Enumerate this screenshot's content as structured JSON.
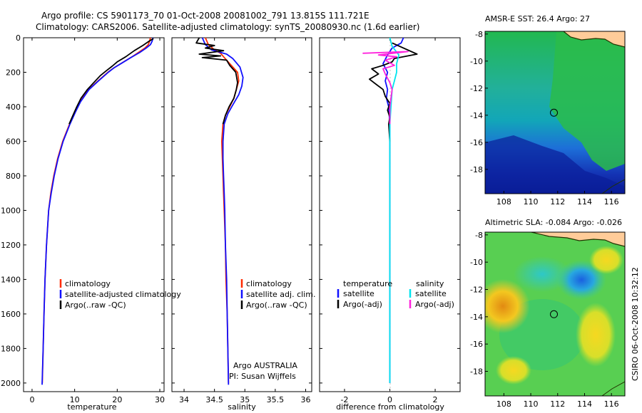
{
  "title": {
    "line1": "Argo profile: CS 5901173_70 01-Oct-2008 20081002_791 13.815S 111.721E",
    "line2": "Climatology: CARS2006. Satellite-adjusted climatology: synTS_20080930.nc (1.6d earlier)"
  },
  "side_label": "CSIRO 06-Oct-2008 10:32:12",
  "colors": {
    "climatology": "#ff2a00",
    "satellite": "#1010ff",
    "argo": "#000000",
    "sat_salinity": "#00e5ee",
    "argo_salinity": "#ff22dd",
    "coast": "#223300",
    "land": "#ffcc99"
  },
  "legend_temp": {
    "items": [
      "climatology",
      "satellite-adjusted climatology",
      "Argo(..raw -QC)"
    ]
  },
  "legend_sal": {
    "items": [
      "climatology",
      "satellite adj. clim.",
      "Argo(..raw -QC)"
    ],
    "note1": "Argo AUSTRALIA",
    "note2": "PI: Susan Wijffels"
  },
  "legend_diff": {
    "temp_header": "temperature",
    "sal_header": "salinity",
    "items_temp": [
      "satellite",
      "Argo(-adj)"
    ],
    "items_sal": [
      "satellite",
      "Argo(-adj)"
    ]
  },
  "map_sst": {
    "title": "AMSR-E SST: 26.4 Argo: 27",
    "float_lon": 111.721,
    "float_lat": -13.815
  },
  "map_sla": {
    "title": "Altimetric SLA: -0.084  Argo: -0.026",
    "float_lon": 111.721,
    "float_lat": -13.815
  },
  "chart_data": [
    {
      "type": "line",
      "xlabel": "temperature",
      "ylabel": "",
      "xlim": [
        -2,
        31
      ],
      "ylim": [
        2050,
        0
      ],
      "xticks": [
        0,
        10,
        20,
        30
      ],
      "yticks": [
        0,
        200,
        400,
        600,
        800,
        1000,
        1200,
        1400,
        1600,
        1800,
        2000
      ],
      "series": [
        {
          "name": "climatology",
          "color": "#ff2a00",
          "points": [
            [
              27.8,
              0
            ],
            [
              27.6,
              20
            ],
            [
              27.3,
              40
            ],
            [
              26.5,
              60
            ],
            [
              25.3,
              80
            ],
            [
              23.5,
              110
            ],
            [
              21.5,
              140
            ],
            [
              19.2,
              175
            ],
            [
              17.8,
              200
            ],
            [
              15.5,
              250
            ],
            [
              13.3,
              300
            ],
            [
              11.3,
              370
            ],
            [
              10.1,
              430
            ],
            [
              8.8,
              500
            ],
            [
              7.2,
              600
            ],
            [
              6.0,
              700
            ],
            [
              5.1,
              800
            ],
            [
              4.4,
              900
            ],
            [
              3.9,
              1000
            ],
            [
              3.4,
              1200
            ],
            [
              3.05,
              1400
            ],
            [
              2.8,
              1600
            ],
            [
              2.6,
              1800
            ],
            [
              2.4,
              2000
            ]
          ]
        },
        {
          "name": "satellite-adjusted climatology",
          "color": "#1010ff",
          "points": [
            [
              28.4,
              0
            ],
            [
              28.2,
              20
            ],
            [
              27.8,
              40
            ],
            [
              26.8,
              60
            ],
            [
              25.3,
              85
            ],
            [
              23.2,
              115
            ],
            [
              21.2,
              145
            ],
            [
              19.2,
              175
            ],
            [
              17.9,
              200
            ],
            [
              15.6,
              250
            ],
            [
              13.4,
              300
            ],
            [
              11.4,
              370
            ],
            [
              10.2,
              430
            ],
            [
              8.9,
              500
            ],
            [
              7.3,
              600
            ],
            [
              6.1,
              700
            ],
            [
              5.2,
              800
            ],
            [
              4.5,
              900
            ],
            [
              3.9,
              1000
            ],
            [
              3.4,
              1200
            ],
            [
              3.05,
              1400
            ],
            [
              2.8,
              1600
            ],
            [
              2.6,
              1800
            ],
            [
              2.35,
              2010
            ]
          ]
        },
        {
          "name": "Argo(..raw -QC)",
          "color": "#000000",
          "points": [
            [
              28.5,
              5
            ],
            [
              27.5,
              20
            ],
            [
              26.0,
              45
            ],
            [
              24.0,
              75
            ],
            [
              22.0,
              110
            ],
            [
              20.0,
              140
            ],
            [
              18.8,
              165
            ],
            [
              17.5,
              190
            ],
            [
              16.0,
              220
            ],
            [
              14.5,
              260
            ],
            [
              13.0,
              300
            ],
            [
              11.5,
              350
            ],
            [
              10.5,
              400
            ],
            [
              9.6,
              450
            ],
            [
              8.7,
              500
            ]
          ]
        }
      ]
    },
    {
      "type": "line",
      "xlabel": "salinity",
      "ylabel": "",
      "xlim": [
        33.8,
        36.1
      ],
      "ylim": [
        2050,
        0
      ],
      "xticks": [
        34,
        34.5,
        35,
        35.5,
        36
      ],
      "series": [
        {
          "name": "climatology",
          "color": "#ff2a00",
          "points": [
            [
              34.35,
              0
            ],
            [
              34.4,
              40
            ],
            [
              34.5,
              70
            ],
            [
              34.6,
              90
            ],
            [
              34.65,
              110
            ],
            [
              34.75,
              150
            ],
            [
              34.88,
              200
            ],
            [
              34.9,
              250
            ],
            [
              34.86,
              300
            ],
            [
              34.82,
              350
            ],
            [
              34.75,
              400
            ],
            [
              34.68,
              450
            ],
            [
              34.64,
              500
            ],
            [
              34.62,
              600
            ],
            [
              34.63,
              700
            ],
            [
              34.64,
              800
            ],
            [
              34.65,
              900
            ],
            [
              34.66,
              1000
            ],
            [
              34.68,
              1200
            ],
            [
              34.69,
              1400
            ],
            [
              34.71,
              1600
            ],
            [
              34.72,
              1800
            ],
            [
              34.73,
              2000
            ]
          ]
        },
        {
          "name": "satellite adj. clim.",
          "color": "#1010ff",
          "points": [
            [
              34.3,
              0
            ],
            [
              34.35,
              40
            ],
            [
              34.45,
              70
            ],
            [
              34.7,
              95
            ],
            [
              34.8,
              120
            ],
            [
              34.92,
              170
            ],
            [
              34.97,
              230
            ],
            [
              34.95,
              280
            ],
            [
              34.9,
              330
            ],
            [
              34.8,
              390
            ],
            [
              34.72,
              440
            ],
            [
              34.66,
              500
            ],
            [
              34.64,
              600
            ],
            [
              34.64,
              700
            ],
            [
              34.65,
              800
            ],
            [
              34.66,
              900
            ],
            [
              34.67,
              1000
            ],
            [
              34.68,
              1200
            ],
            [
              34.7,
              1400
            ],
            [
              34.71,
              1600
            ],
            [
              34.72,
              1800
            ],
            [
              34.73,
              2010
            ]
          ]
        },
        {
          "name": "Argo(..raw -QC)",
          "color": "#000000",
          "points": [
            [
              34.25,
              0
            ],
            [
              34.2,
              30
            ],
            [
              34.5,
              45
            ],
            [
              34.35,
              60
            ],
            [
              34.65,
              75
            ],
            [
              34.25,
              95
            ],
            [
              34.6,
              105
            ],
            [
              34.3,
              115
            ],
            [
              34.7,
              130
            ],
            [
              34.75,
              160
            ],
            [
              34.85,
              200
            ],
            [
              34.88,
              260
            ],
            [
              34.86,
              300
            ],
            [
              34.82,
              350
            ],
            [
              34.74,
              400
            ],
            [
              34.68,
              450
            ],
            [
              34.64,
              500
            ]
          ]
        }
      ]
    },
    {
      "type": "line",
      "xlabel": "difference from climatology",
      "ylabel": "",
      "xlim": [
        -3.1,
        3.1
      ],
      "ylim": [
        2050,
        0
      ],
      "xticks": [
        -2,
        0,
        2
      ],
      "series": [
        {
          "name": "temperature satellite",
          "color": "#1010ff",
          "points": [
            [
              0.6,
              0
            ],
            [
              0.5,
              30
            ],
            [
              0.1,
              60
            ],
            [
              -0.1,
              100
            ],
            [
              -0.3,
              150
            ],
            [
              -0.1,
              200
            ],
            [
              -0.2,
              250
            ],
            [
              -0.1,
              300
            ],
            [
              -0.15,
              350
            ],
            [
              -0.05,
              400
            ],
            [
              0.0,
              500
            ],
            [
              0.0,
              700
            ],
            [
              0.0,
              1000
            ],
            [
              0.0,
              1500
            ],
            [
              0.0,
              2000
            ]
          ]
        },
        {
          "name": "temperature Argo(-adj)",
          "color": "#000000",
          "points": [
            [
              0.1,
              30
            ],
            [
              1.2,
              95
            ],
            [
              0.2,
              120
            ],
            [
              0.1,
              140
            ],
            [
              -0.3,
              160
            ],
            [
              -0.8,
              180
            ],
            [
              -0.5,
              210
            ],
            [
              -0.9,
              240
            ],
            [
              -0.6,
              270
            ],
            [
              -0.3,
              300
            ],
            [
              -0.2,
              340
            ],
            [
              0.0,
              380
            ],
            [
              -0.1,
              420
            ],
            [
              0.0,
              460
            ],
            [
              -0.05,
              500
            ],
            [
              0.0,
              600
            ]
          ]
        },
        {
          "name": "salinity satellite",
          "color": "#00e5ee",
          "points": [
            [
              0.0,
              0
            ],
            [
              0.1,
              50
            ],
            [
              0.4,
              100
            ],
            [
              0.3,
              150
            ],
            [
              0.3,
              200
            ],
            [
              0.2,
              250
            ],
            [
              0.1,
              300
            ],
            [
              0.05,
              400
            ],
            [
              0.0,
              500
            ],
            [
              0.0,
              800
            ],
            [
              0.0,
              1000
            ],
            [
              0.0,
              2000
            ]
          ]
        },
        {
          "name": "salinity Argo(-adj)",
          "color": "#ff22dd",
          "points": [
            [
              -1.2,
              90
            ],
            [
              0.8,
              80
            ],
            [
              -0.5,
              100
            ],
            [
              0.3,
              110
            ],
            [
              -0.2,
              130
            ],
            [
              0.2,
              160
            ],
            [
              -0.3,
              180
            ],
            [
              -0.2,
              210
            ],
            [
              0.0,
              260
            ],
            [
              0.1,
              300
            ],
            [
              0.05,
              350
            ],
            [
              0.0,
              400
            ],
            [
              0.0,
              500
            ]
          ]
        }
      ]
    }
  ]
}
